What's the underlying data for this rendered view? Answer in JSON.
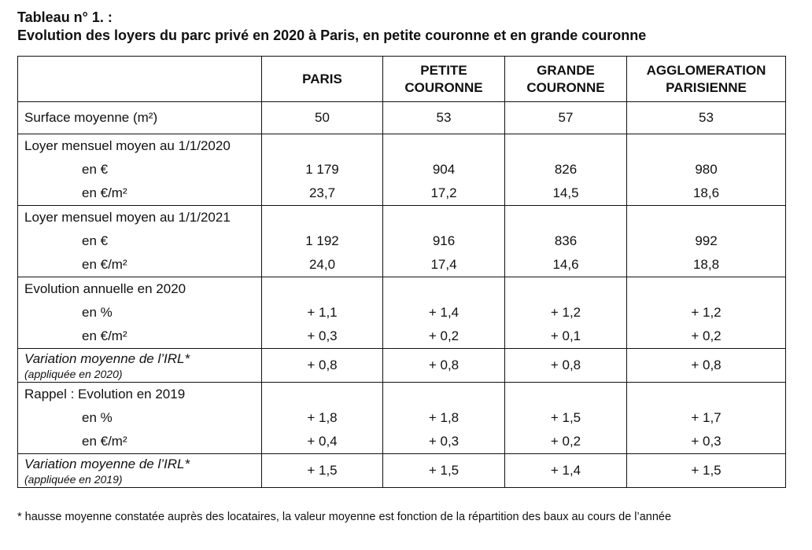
{
  "title": {
    "line1": "Tableau n° 1. :",
    "line2": "Evolution des loyers du parc privé en 2020 à Paris, en petite couronne et en grande couronne"
  },
  "columns": [
    "PARIS",
    "PETITE COURONNE",
    "GRANDE COURONNE",
    "AGGLOMERATION PARISIENNE"
  ],
  "rows": {
    "surface": {
      "label": "Surface moyenne (m²)",
      "values": [
        "50",
        "53",
        "57",
        "53"
      ]
    },
    "loyer2020": {
      "label": "Loyer mensuel moyen au 1/1/2020",
      "sub1": "en €",
      "sub2": "en €/m²",
      "v1": [
        "1 179",
        "904",
        "826",
        "980"
      ],
      "v2": [
        "23,7",
        "17,2",
        "14,5",
        "18,6"
      ]
    },
    "loyer2021": {
      "label": "Loyer mensuel moyen au 1/1/2021",
      "sub1": "en €",
      "sub2": "en €/m²",
      "v1": [
        "1 192",
        "916",
        "836",
        "992"
      ],
      "v2": [
        "24,0",
        "17,4",
        "14,6",
        "18,8"
      ]
    },
    "evol2020": {
      "label": "Evolution annuelle en 2020",
      "sub1": "en %",
      "sub2": "en €/m²",
      "v1": [
        "+ 1,1",
        "+ 1,4",
        "+ 1,2",
        "+ 1,2"
      ],
      "v2": [
        "+ 0,3",
        "+ 0,2",
        "+ 0,1",
        "+ 0,2"
      ]
    },
    "irl2020": {
      "label": "Variation moyenne de l’IRL*",
      "note": "(appliquée en 2020)",
      "values": [
        "+ 0,8",
        "+ 0,8",
        "+ 0,8",
        "+ 0,8"
      ]
    },
    "evol2019": {
      "label": "Rappel : Evolution en 2019",
      "sub1": "en %",
      "sub2": "en €/m²",
      "v1": [
        "+ 1,8",
        "+ 1,8",
        "+ 1,5",
        "+ 1,7"
      ],
      "v2": [
        "+ 0,4",
        "+ 0,3",
        "+ 0,2",
        "+ 0,3"
      ]
    },
    "irl2019": {
      "label": "Variation moyenne de l’IRL*",
      "note": "(appliquée en 2019)",
      "values": [
        "+ 1,5",
        "+ 1,5",
        "+ 1,4",
        "+ 1,5"
      ]
    }
  },
  "footnote": "* hausse moyenne constatée auprès des locataires, la valeur moyenne est fonction de la répartition des baux au cours de l’année"
}
